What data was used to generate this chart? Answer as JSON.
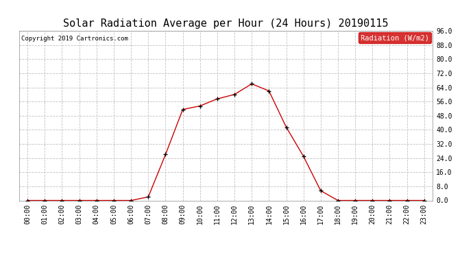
{
  "title": "Solar Radiation Average per Hour (24 Hours) 20190115",
  "copyright_text": "Copyright 2019 Cartronics.com",
  "legend_label": "Radiation (W/m2)",
  "hours": [
    0,
    1,
    2,
    3,
    4,
    5,
    6,
    7,
    8,
    9,
    10,
    11,
    12,
    13,
    14,
    15,
    16,
    17,
    18,
    19,
    20,
    21,
    22,
    23
  ],
  "values": [
    0.0,
    0.0,
    0.0,
    0.0,
    0.0,
    0.0,
    0.0,
    2.0,
    26.0,
    51.5,
    53.5,
    57.5,
    60.0,
    66.0,
    62.0,
    41.5,
    25.0,
    5.5,
    0.0,
    0.0,
    0.0,
    0.0,
    0.0,
    0.0
  ],
  "ylim": [
    0,
    96.0
  ],
  "yticks": [
    0.0,
    8.0,
    16.0,
    24.0,
    32.0,
    40.0,
    48.0,
    56.0,
    64.0,
    72.0,
    80.0,
    88.0,
    96.0
  ],
  "line_color": "#cc0000",
  "marker_color": "#000000",
  "grid_color": "#c0c0c0",
  "background_color": "#ffffff",
  "legend_bg": "#cc0000",
  "legend_text_color": "#ffffff",
  "title_fontsize": 11,
  "copyright_fontsize": 6.5,
  "tick_fontsize": 7,
  "legend_fontsize": 7.5
}
